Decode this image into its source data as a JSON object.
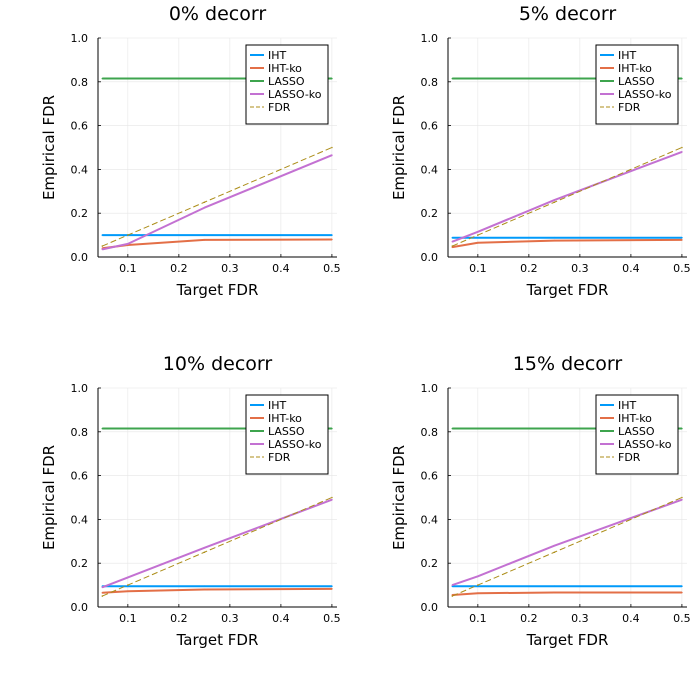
{
  "chart_data": [
    {
      "type": "line",
      "title": "0% decorr",
      "xlabel": "Target FDR",
      "ylabel": "Empirical FDR",
      "xlim": [
        0.05,
        0.5
      ],
      "ylim": [
        0,
        1.0
      ],
      "xticks": [
        "0.1",
        "0.2",
        "0.3",
        "0.4",
        "0.5"
      ],
      "yticks": [
        "0.0",
        "0.2",
        "0.4",
        "0.6",
        "0.8",
        "1.0"
      ],
      "grid": true,
      "legend_position": "top-right",
      "x": [
        0.05,
        0.1,
        0.25,
        0.5
      ],
      "series": [
        {
          "name": "IHT",
          "color": "#009AFA",
          "dashed": false,
          "values": [
            0.1,
            0.1,
            0.1,
            0.1
          ]
        },
        {
          "name": "IHT-ko",
          "color": "#E36F47",
          "dashed": false,
          "values": [
            0.04,
            0.055,
            0.078,
            0.08
          ]
        },
        {
          "name": "LASSO",
          "color": "#3EA44E",
          "dashed": false,
          "values": [
            0.815,
            0.815,
            0.815,
            0.815
          ]
        },
        {
          "name": "LASSO-ko",
          "color": "#C371D2",
          "dashed": false,
          "values": [
            0.035,
            0.06,
            0.225,
            0.465
          ]
        },
        {
          "name": "FDR",
          "color": "#AC8D18",
          "dashed": true,
          "values": [
            0.05,
            0.1,
            0.25,
            0.5
          ]
        }
      ]
    },
    {
      "type": "line",
      "title": "5% decorr",
      "xlabel": "Target FDR",
      "ylabel": "Empirical FDR",
      "xlim": [
        0.05,
        0.5
      ],
      "ylim": [
        0,
        1.0
      ],
      "xticks": [
        "0.1",
        "0.2",
        "0.3",
        "0.4",
        "0.5"
      ],
      "yticks": [
        "0.0",
        "0.2",
        "0.4",
        "0.6",
        "0.8",
        "1.0"
      ],
      "grid": true,
      "legend_position": "top-right",
      "x": [
        0.05,
        0.1,
        0.25,
        0.5
      ],
      "series": [
        {
          "name": "IHT",
          "color": "#009AFA",
          "dashed": false,
          "values": [
            0.088,
            0.088,
            0.088,
            0.088
          ]
        },
        {
          "name": "IHT-ko",
          "color": "#E36F47",
          "dashed": false,
          "values": [
            0.045,
            0.065,
            0.075,
            0.078
          ]
        },
        {
          "name": "LASSO",
          "color": "#3EA44E",
          "dashed": false,
          "values": [
            0.815,
            0.815,
            0.815,
            0.815
          ]
        },
        {
          "name": "LASSO-ko",
          "color": "#C371D2",
          "dashed": false,
          "values": [
            0.07,
            0.115,
            0.26,
            0.48
          ]
        },
        {
          "name": "FDR",
          "color": "#AC8D18",
          "dashed": true,
          "values": [
            0.05,
            0.1,
            0.25,
            0.5
          ]
        }
      ]
    },
    {
      "type": "line",
      "title": "10% decorr",
      "xlabel": "Target FDR",
      "ylabel": "Empirical FDR",
      "xlim": [
        0.05,
        0.5
      ],
      "ylim": [
        0,
        1.0
      ],
      "xticks": [
        "0.1",
        "0.2",
        "0.3",
        "0.4",
        "0.5"
      ],
      "yticks": [
        "0.0",
        "0.2",
        "0.4",
        "0.6",
        "0.8",
        "1.0"
      ],
      "grid": true,
      "legend_position": "top-right",
      "x": [
        0.05,
        0.1,
        0.25,
        0.5
      ],
      "series": [
        {
          "name": "IHT",
          "color": "#009AFA",
          "dashed": false,
          "values": [
            0.095,
            0.095,
            0.095,
            0.095
          ]
        },
        {
          "name": "IHT-ko",
          "color": "#E36F47",
          "dashed": false,
          "values": [
            0.065,
            0.072,
            0.08,
            0.083
          ]
        },
        {
          "name": "LASSO",
          "color": "#3EA44E",
          "dashed": false,
          "values": [
            0.815,
            0.815,
            0.815,
            0.815
          ]
        },
        {
          "name": "LASSO-ko",
          "color": "#C371D2",
          "dashed": false,
          "values": [
            0.09,
            0.135,
            0.27,
            0.49
          ]
        },
        {
          "name": "FDR",
          "color": "#AC8D18",
          "dashed": true,
          "values": [
            0.05,
            0.1,
            0.25,
            0.5
          ]
        }
      ]
    },
    {
      "type": "line",
      "title": "15% decorr",
      "xlabel": "Target FDR",
      "ylabel": "Empirical FDR",
      "xlim": [
        0.05,
        0.5
      ],
      "ylim": [
        0,
        1.0
      ],
      "xticks": [
        "0.1",
        "0.2",
        "0.3",
        "0.4",
        "0.5"
      ],
      "yticks": [
        "0.0",
        "0.2",
        "0.4",
        "0.6",
        "0.8",
        "1.0"
      ],
      "grid": true,
      "legend_position": "top-right",
      "x": [
        0.05,
        0.1,
        0.25,
        0.5
      ],
      "series": [
        {
          "name": "IHT",
          "color": "#009AFA",
          "dashed": false,
          "values": [
            0.095,
            0.095,
            0.095,
            0.095
          ]
        },
        {
          "name": "IHT-ko",
          "color": "#E36F47",
          "dashed": false,
          "values": [
            0.055,
            0.063,
            0.066,
            0.066
          ]
        },
        {
          "name": "LASSO",
          "color": "#3EA44E",
          "dashed": false,
          "values": [
            0.815,
            0.815,
            0.815,
            0.815
          ]
        },
        {
          "name": "LASSO-ko",
          "color": "#C371D2",
          "dashed": false,
          "values": [
            0.1,
            0.14,
            0.28,
            0.49
          ]
        },
        {
          "name": "FDR",
          "color": "#AC8D18",
          "dashed": true,
          "values": [
            0.05,
            0.1,
            0.25,
            0.5
          ]
        }
      ]
    }
  ]
}
